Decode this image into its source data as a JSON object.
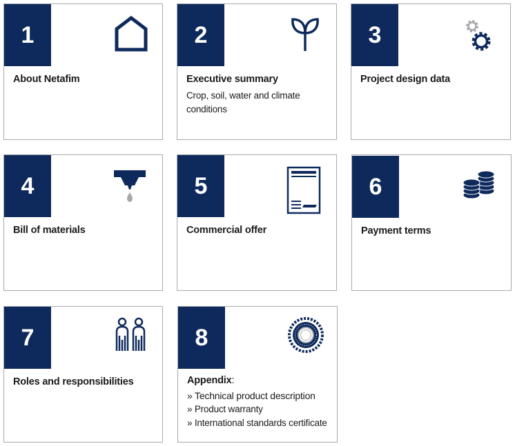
{
  "cards": [
    {
      "number": "1",
      "title": "About Netafim",
      "icon": "house-icon"
    },
    {
      "number": "2",
      "title": "Executive summary",
      "description": "Crop, soil, water and climate conditions",
      "icon": "sprout-icon"
    },
    {
      "number": "3",
      "title": "Project design data",
      "icon": "gears-icon"
    },
    {
      "number": "4",
      "title": "Bill of materials",
      "icon": "dripper-icon"
    },
    {
      "number": "5",
      "title": "Commercial offer",
      "icon": "document-icon"
    },
    {
      "number": "6",
      "title": "Payment terms",
      "icon": "coins-icon"
    },
    {
      "number": "7",
      "title": "Roles and responsibilities",
      "icon": "people-icon"
    },
    {
      "number": "8",
      "title": "Appendix",
      "title_suffix": ":",
      "items": [
        "» Technical product description",
        "» Product warranty",
        "» International standards certificate"
      ],
      "icon": "seal-icon"
    }
  ],
  "colors": {
    "accent": "#0e2a5c",
    "border": "#a7a9ac",
    "icon_gray": "#a7a9ac"
  }
}
